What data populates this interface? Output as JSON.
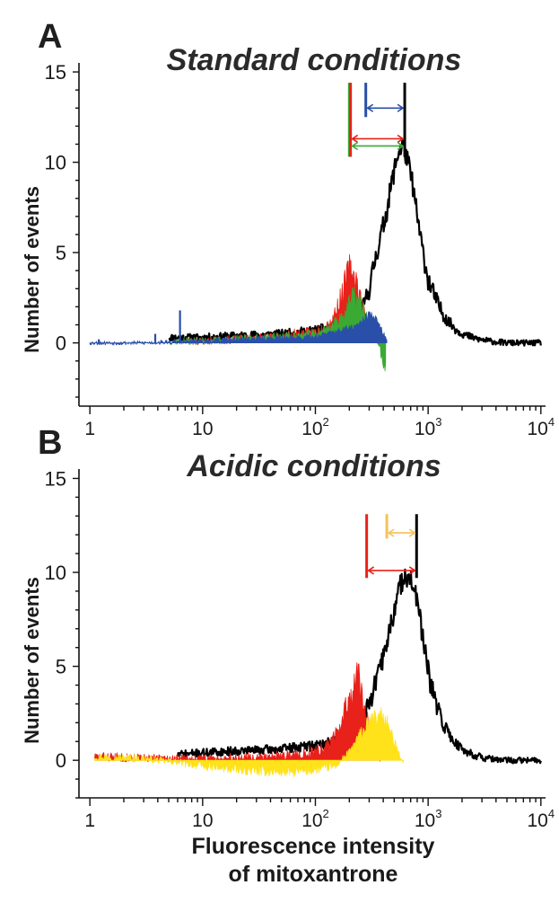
{
  "figure": {
    "x_axis_label_line1": "Fluorescence intensity",
    "x_axis_label_line2": "of mitoxantrone"
  },
  "chart_data": [
    {
      "panel": "A",
      "title": "Standard conditions",
      "type": "area",
      "x_scale": "log",
      "xlim": [
        0.8,
        11000
      ],
      "ylim": [
        -3.5,
        15.5
      ],
      "xlabel": "",
      "ylabel": "Number of events",
      "y_ticks": [
        0,
        5,
        10,
        15
      ],
      "x_ticks": [
        {
          "value": 1,
          "base": "1",
          "exp": ""
        },
        {
          "value": 10,
          "base": "10",
          "exp": ""
        },
        {
          "value": 100,
          "base": "10",
          "exp": "2"
        },
        {
          "value": 1000,
          "base": "10",
          "exp": "3"
        },
        {
          "value": 10000,
          "base": "10",
          "exp": "4"
        }
      ],
      "series": [
        {
          "color": "#000000",
          "style": "line",
          "x": [
            5,
            10,
            20,
            50,
            100,
            150,
            200,
            260,
            300,
            350,
            420,
            480,
            540,
            600,
            660,
            720,
            800,
            900,
            1000,
            1150,
            1300,
            1500,
            1800,
            2200,
            2800,
            3500,
            5000,
            10000
          ],
          "y": [
            0.3,
            0.3,
            0.4,
            0.5,
            0.7,
            0.9,
            1.2,
            1.8,
            3,
            5,
            7,
            9,
            10.5,
            11,
            10,
            9,
            7,
            5,
            3.5,
            2.5,
            1.8,
            1.2,
            0.7,
            0.4,
            0.2,
            0.1,
            0,
            0
          ],
          "noise": 0.45,
          "seed": 11
        },
        {
          "color": "#e8211a",
          "style": "fill",
          "x": [
            7,
            10,
            20,
            40,
            70,
            100,
            140,
            170,
            200,
            230,
            260,
            300,
            340
          ],
          "y": [
            0.1,
            0.1,
            0.2,
            0.3,
            0.5,
            0.6,
            1.2,
            2.5,
            4.2,
            3.5,
            2,
            0.8,
            0.2
          ],
          "noise": 0.6,
          "seed": 23
        },
        {
          "color": "#3aaa35",
          "style": "fill",
          "x": [
            5,
            10,
            20,
            40,
            70,
            100,
            140,
            180,
            220,
            260,
            300,
            350,
            400,
            420
          ],
          "y": [
            0.1,
            0.1,
            0.2,
            0.3,
            0.4,
            0.5,
            0.9,
            1.6,
            2.6,
            2.0,
            1.0,
            0.2,
            -1.0,
            -1.5
          ],
          "noise": 0.55,
          "seed": 37
        },
        {
          "color": "#2a4fa8",
          "style": "fill",
          "x": [
            1,
            3,
            5,
            10,
            20,
            40,
            70,
            100,
            150,
            200,
            250,
            300,
            350,
            400,
            430
          ],
          "y": [
            0,
            0,
            0.05,
            0.1,
            0.2,
            0.25,
            0.3,
            0.35,
            0.6,
            0.8,
            1.0,
            1.6,
            1.2,
            0.5,
            0.1
          ],
          "noise": 0.35,
          "seed": 53
        }
      ],
      "spikes": [
        {
          "x": 6.3,
          "y": 1.8,
          "color": "#2a4fa8"
        },
        {
          "x": 3.8,
          "y": 0.5,
          "color": "#2a4fa8"
        },
        {
          "x": 1.2,
          "y": 0.2,
          "color": "#2a4fa8"
        }
      ],
      "markers": [
        {
          "x": 200,
          "color": "#3aaa35",
          "y_top": 14.4,
          "y_bottom": 10.3
        },
        {
          "x": 205,
          "color": "#e8211a",
          "y_top": 14.4,
          "y_bottom": 10.3
        },
        {
          "x": 280,
          "color": "#2a4fa8",
          "y_top": 14.4,
          "y_bottom": 12.5
        },
        {
          "x": 620,
          "color": "#000000",
          "y_top": 14.4,
          "y_bottom": 10.3
        }
      ],
      "arrows": [
        {
          "from": 280,
          "to": 620,
          "y": 13.0,
          "color": "#2a4fa8"
        },
        {
          "from": 205,
          "to": 620,
          "y": 11.3,
          "color": "#e8211a"
        },
        {
          "from": 205,
          "to": 620,
          "y": 10.9,
          "color": "#3aaa35"
        }
      ]
    },
    {
      "panel": "B",
      "title": "Acidic conditions",
      "type": "area",
      "x_scale": "log",
      "xlim": [
        0.8,
        11000
      ],
      "ylim": [
        -2,
        15.5
      ],
      "xlabel": "",
      "ylabel": "Number of events",
      "y_ticks": [
        0,
        5,
        10,
        15
      ],
      "x_ticks": [
        {
          "value": 1,
          "base": "1",
          "exp": ""
        },
        {
          "value": 10,
          "base": "10",
          "exp": ""
        },
        {
          "value": 100,
          "base": "10",
          "exp": "2"
        },
        {
          "value": 1000,
          "base": "10",
          "exp": "3"
        },
        {
          "value": 10000,
          "base": "10",
          "exp": "4"
        }
      ],
      "series": [
        {
          "color": "#000000",
          "style": "line",
          "x": [
            6,
            10,
            20,
            50,
            100,
            150,
            200,
            260,
            320,
            400,
            480,
            550,
            620,
            700,
            780,
            850,
            950,
            1050,
            1200,
            1400,
            1700,
            2000,
            2500,
            3200,
            4500,
            10000
          ],
          "y": [
            0.3,
            0.4,
            0.5,
            0.6,
            0.8,
            1,
            1.5,
            2.2,
            3.5,
            5.5,
            7.5,
            9,
            10,
            9.5,
            8.8,
            7.5,
            5.5,
            4,
            2.8,
            1.8,
            1,
            0.6,
            0.3,
            0.1,
            0,
            0
          ],
          "noise": 0.45,
          "seed": 71
        },
        {
          "color": "#e8211a",
          "style": "fill",
          "x": [
            1.1,
            5,
            10,
            30,
            70,
            120,
            160,
            200,
            240,
            280,
            320,
            380
          ],
          "y": [
            0.2,
            0.1,
            0.1,
            0.2,
            0.3,
            0.6,
            1.5,
            3.2,
            4.8,
            2.6,
            0.8,
            0.1
          ],
          "noise": 0.6,
          "seed": 83
        },
        {
          "color": "#ffe219",
          "style": "fill",
          "x": [
            1.1,
            3,
            6,
            10,
            20,
            40,
            70,
            100,
            150,
            200,
            260,
            320,
            380,
            430,
            480,
            540,
            600
          ],
          "y": [
            0.2,
            0.1,
            -0.1,
            -0.3,
            -0.5,
            -0.6,
            -0.6,
            -0.5,
            -0.3,
            0.4,
            1.5,
            2.1,
            2.4,
            2.0,
            1.2,
            0.4,
            0
          ],
          "noise": 0.5,
          "seed": 97
        }
      ],
      "spikes": [],
      "markers": [
        {
          "x": 285,
          "color": "#e8211a",
          "y_top": 13.1,
          "y_bottom": 9.7
        },
        {
          "x": 430,
          "color": "#f5c15a",
          "y_top": 13.1,
          "y_bottom": 11.8
        },
        {
          "x": 790,
          "color": "#000000",
          "y_top": 13.1,
          "y_bottom": 9.7
        }
      ],
      "arrows": [
        {
          "from": 430,
          "to": 790,
          "y": 12.1,
          "color": "#f5c15a"
        },
        {
          "from": 285,
          "to": 790,
          "y": 10.1,
          "color": "#e8211a"
        }
      ]
    }
  ]
}
